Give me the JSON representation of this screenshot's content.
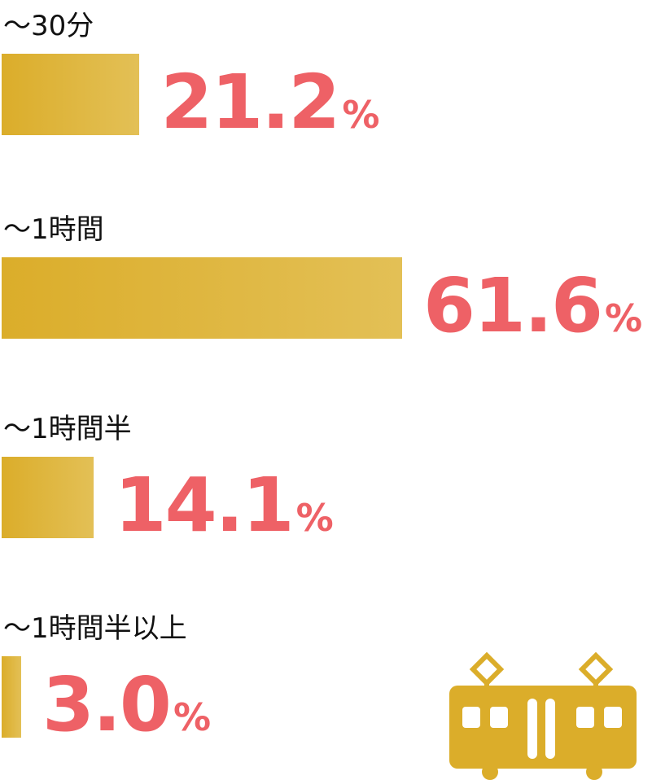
{
  "chart_data": {
    "type": "bar",
    "orientation": "horizontal",
    "categories": [
      "～30分",
      "～1時間",
      "～1時間半",
      "～1時間半以上"
    ],
    "values": [
      21.2,
      61.6,
      14.1,
      3.0
    ],
    "value_labels": [
      "21.2",
      "61.6",
      "14.1",
      "3.0"
    ],
    "unit": "%",
    "grid": false,
    "bar_color": "#dbad2a",
    "value_color": "#ee6166"
  },
  "decoration": {
    "icon": "train-icon",
    "color": "#dbad2a"
  }
}
